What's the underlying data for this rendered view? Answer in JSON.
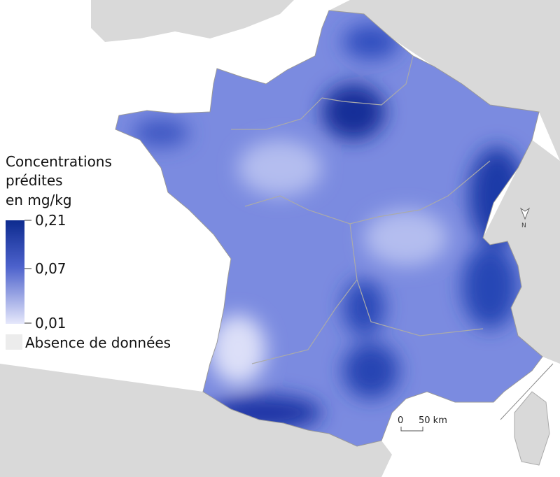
{
  "legend": {
    "title_lines": [
      "Concentrations",
      "prédites",
      "en mg/kg"
    ],
    "ticks": [
      "0,21",
      "0,07",
      "0,01"
    ],
    "no_data": "Absence de données"
  },
  "scale_bar": {
    "labels": [
      "0",
      "50 km"
    ]
  },
  "north_arrow": {
    "label": "N"
  }
}
